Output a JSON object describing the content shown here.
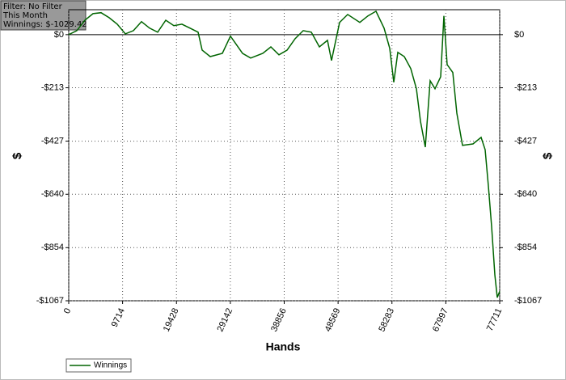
{
  "chart_data": {
    "type": "line",
    "info_box": [
      "Filter: No Filter",
      "This Month",
      "Winnings: $-1029.42"
    ],
    "xlabel": "Hands",
    "ylabel": "$",
    "xlim": [
      0,
      77711
    ],
    "xticks": [
      0,
      9714,
      19428,
      29142,
      38856,
      48569,
      58283,
      67997,
      77711
    ],
    "ylim": [
      -1067,
      100
    ],
    "yticks": [
      {
        "value": 0,
        "label": "$0"
      },
      {
        "value": -213,
        "label": "-$213"
      },
      {
        "value": -427,
        "label": "-$427"
      },
      {
        "value": -640,
        "label": "-$640"
      },
      {
        "value": -854,
        "label": "-$854"
      },
      {
        "value": -1067,
        "label": "-$1067"
      }
    ],
    "grid": true,
    "legend": "bottom-left",
    "x": [
      0,
      1458,
      2916,
      4374,
      5832,
      7290,
      8748,
      10206,
      11664,
      13122,
      14580,
      16038,
      17496,
      18954,
      20412,
      21870,
      23328,
      24057,
      25515,
      27702,
      29160,
      29889,
      31347,
      32805,
      34992,
      36450,
      37908,
      39366,
      40824,
      42282,
      43740,
      45198,
      46656,
      47385,
      48843,
      50301,
      52488,
      53946,
      55404,
      56862,
      57882,
      58611,
      59340,
      60507,
      61673,
      62694,
      63423,
      64298,
      65173,
      66048,
      67068,
      67652,
      68236,
      69256,
      69985,
      71006,
      72901,
      74359,
      75088,
      75672,
      76255,
      76838,
      77275,
      77711
    ],
    "series": [
      {
        "name": "Winnings",
        "color": "#006400",
        "values": [
          0,
          16,
          58,
          84,
          88,
          68,
          42,
          3,
          16,
          52,
          26,
          10,
          58,
          36,
          42,
          26,
          10,
          -62,
          -88,
          -75,
          -6,
          -29,
          -75,
          -94,
          -75,
          -49,
          -81,
          -62,
          -16,
          16,
          10,
          -49,
          -23,
          -104,
          49,
          81,
          49,
          75,
          94,
          26,
          -55,
          -191,
          -71,
          -88,
          -136,
          -217,
          -347,
          -451,
          -185,
          -217,
          -169,
          75,
          -120,
          -152,
          -315,
          -444,
          -438,
          -412,
          -461,
          -607,
          -769,
          -963,
          -1054,
          -1029
        ]
      }
    ]
  }
}
